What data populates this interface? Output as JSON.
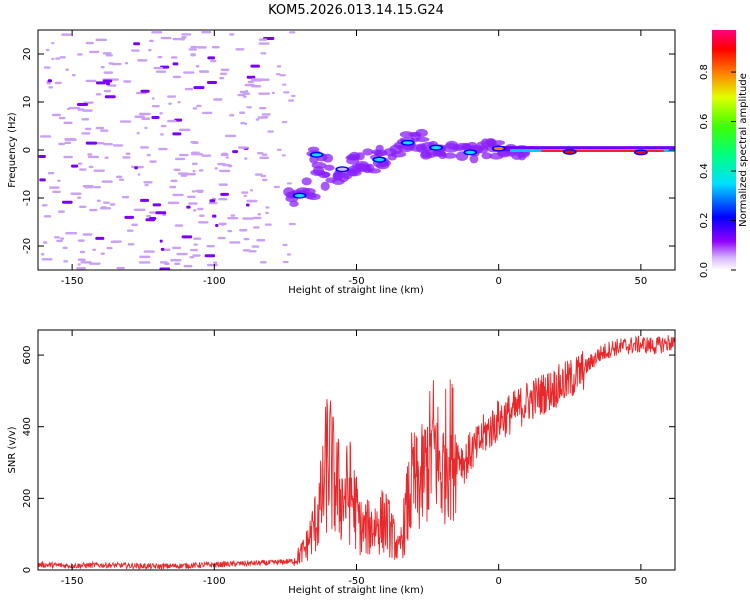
{
  "title": "KOM5.2026.013.14.15.G24",
  "colors": {
    "snr_line": "#e8282a",
    "blob": "#7a00ff",
    "scatter_light": "#c9a0f5"
  },
  "chart_data": [
    {
      "type": "heatmap",
      "panel": "top",
      "xlabel": "Height of straight line (km)",
      "ylabel": "Frequency (Hz)",
      "xlim": [
        -162,
        62
      ],
      "ylim": [
        -25,
        25
      ],
      "xticks": [
        -150,
        -100,
        -50,
        0,
        50
      ],
      "yticks": [
        -20,
        -10,
        0,
        10,
        20
      ],
      "colorbar": {
        "label": "Normalized spectral amplitude",
        "range": [
          0,
          0.97
        ],
        "ticks": [
          0.0,
          0.2,
          0.4,
          0.6,
          0.8
        ]
      },
      "features": [
        {
          "x": -70,
          "freq": -9.5,
          "amp": 0.45
        },
        {
          "x": -64,
          "freq": -1.0,
          "amp": 0.4
        },
        {
          "x": -55,
          "freq": -4.0,
          "amp": 0.1
        },
        {
          "x": -42,
          "freq": -2.0,
          "amp": 0.4
        },
        {
          "x": -32,
          "freq": 1.5,
          "amp": 0.4
        },
        {
          "x": -22,
          "freq": 0.5,
          "amp": 0.4
        },
        {
          "x": -10,
          "freq": -0.5,
          "amp": 0.45
        },
        {
          "x": 0,
          "freq": 0.3,
          "amp": 0.9
        },
        {
          "x": 25,
          "freq": -0.4,
          "amp": 0.95
        },
        {
          "x": 50,
          "freq": -0.5,
          "amp": 0.95
        }
      ]
    },
    {
      "type": "line",
      "panel": "bottom",
      "xlabel": "Height of straight line (km)",
      "ylabel": "SNR (v/v)",
      "xlim": [
        -162,
        62
      ],
      "ylim": [
        0,
        670
      ],
      "xticks": [
        -150,
        -100,
        -50,
        0,
        50
      ],
      "yticks": [
        0,
        200,
        400,
        600
      ],
      "series": [
        {
          "name": "SNR",
          "x": [
            -162,
            -150,
            -140,
            -130,
            -120,
            -110,
            -100,
            -90,
            -80,
            -72,
            -68,
            -65,
            -62,
            -60,
            -58,
            -55,
            -52,
            -50,
            -48,
            -45,
            -42,
            -40,
            -38,
            -35,
            -32,
            -30,
            -28,
            -25,
            -23,
            -21,
            -20,
            -18,
            -15,
            -12,
            -10,
            -8,
            -5,
            -2,
            0,
            5,
            10,
            15,
            20,
            25,
            30,
            35,
            40,
            45,
            50,
            55,
            60,
            62
          ],
          "y": [
            15,
            12,
            14,
            12,
            10,
            12,
            15,
            18,
            20,
            25,
            60,
            120,
            200,
            330,
            250,
            200,
            220,
            160,
            110,
            120,
            130,
            140,
            110,
            50,
            180,
            250,
            230,
            300,
            350,
            300,
            260,
            350,
            330,
            300,
            330,
            340,
            380,
            400,
            420,
            440,
            470,
            490,
            510,
            530,
            560,
            600,
            620,
            625,
            630,
            625,
            635,
            630
          ]
        }
      ]
    }
  ]
}
